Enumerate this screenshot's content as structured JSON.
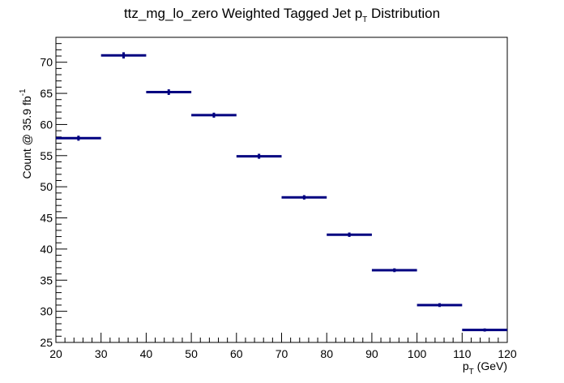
{
  "chart_data": {
    "type": "histogram",
    "title": {
      "main": "ttz_mg_lo_zero Weighted Tagged Jet p",
      "sub": "T",
      "tail": " Distribution"
    },
    "xlabel": {
      "main": "p",
      "sub": "T",
      "tail": " (GeV)"
    },
    "ylabel": {
      "main": "Count @ 35.9 fb",
      "sup": "-1"
    },
    "xlim": [
      20,
      120
    ],
    "ylim": [
      25,
      74
    ],
    "x_ticks": [
      "20",
      "30",
      "40",
      "50",
      "60",
      "70",
      "80",
      "90",
      "100",
      "110",
      "120"
    ],
    "y_ticks": [
      "25",
      "30",
      "35",
      "40",
      "45",
      "50",
      "55",
      "60",
      "65",
      "70"
    ],
    "bin_width": 10,
    "x": [
      25,
      35,
      45,
      55,
      65,
      75,
      85,
      95,
      105,
      115
    ],
    "values": [
      57.8,
      71.1,
      65.2,
      61.5,
      54.9,
      48.3,
      42.3,
      36.6,
      31.0,
      27.0
    ],
    "errors": [
      0.4,
      0.5,
      0.45,
      0.4,
      0.4,
      0.35,
      0.35,
      0.3,
      0.3,
      0.25
    ],
    "color": "#000080"
  }
}
